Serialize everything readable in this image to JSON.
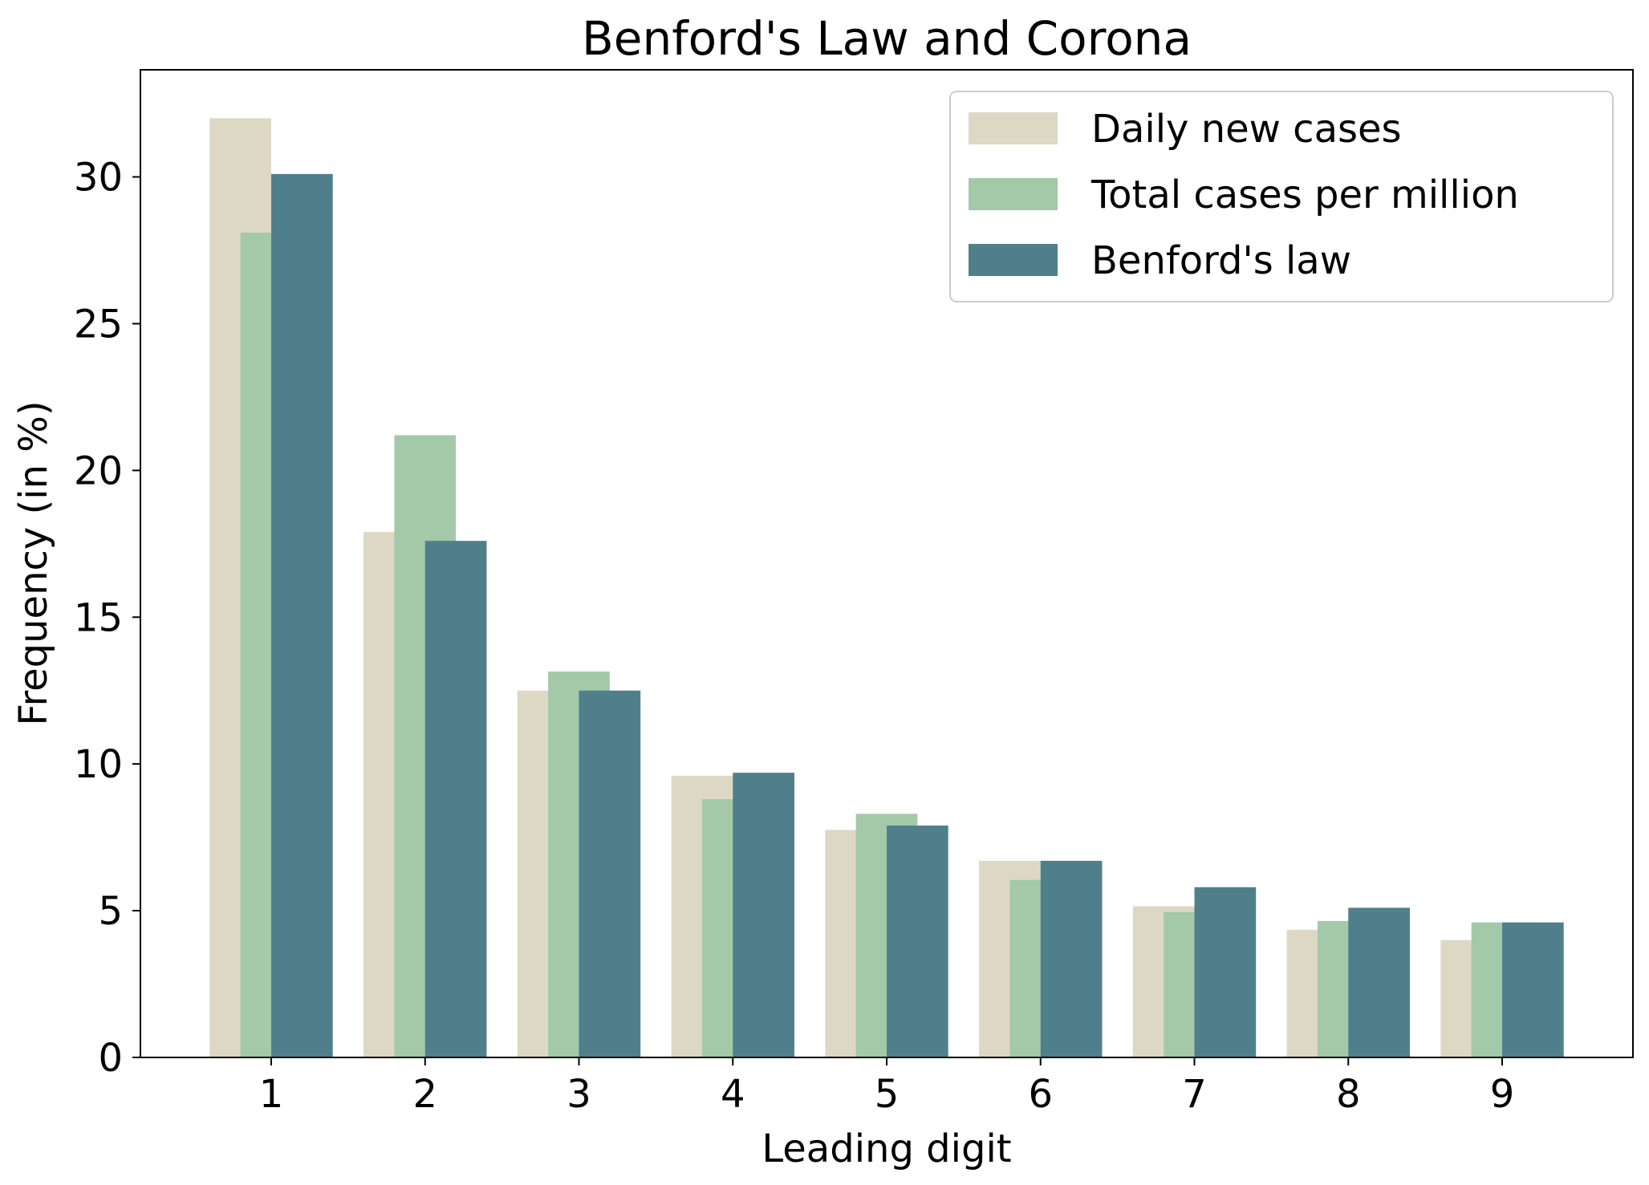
{
  "chart_data": {
    "type": "bar",
    "title": "Benford's Law and Corona",
    "xlabel": "Leading digit",
    "ylabel": "Frequency (in %)",
    "categories": [
      "1",
      "2",
      "3",
      "4",
      "5",
      "6",
      "7",
      "8",
      "9"
    ],
    "series": [
      {
        "name": "Daily new cases",
        "color": "#ddd8c4",
        "values": [
          32.0,
          17.9,
          12.5,
          9.6,
          7.75,
          6.7,
          5.15,
          4.35,
          4.0
        ]
      },
      {
        "name": "Total cases per million",
        "color": "#a3c9a8",
        "values": [
          28.1,
          21.2,
          13.15,
          8.8,
          8.3,
          6.05,
          4.95,
          4.65,
          4.6
        ]
      },
      {
        "name": "Benford's law",
        "color": "#507f8c",
        "values": [
          30.1,
          17.6,
          12.5,
          9.7,
          7.9,
          6.7,
          5.8,
          5.1,
          4.6
        ]
      }
    ],
    "yticks": [
      0,
      5,
      10,
      15,
      20,
      25,
      30
    ],
    "ylim": [
      0,
      33.65
    ],
    "grid": false,
    "legend_position": "top-right"
  }
}
